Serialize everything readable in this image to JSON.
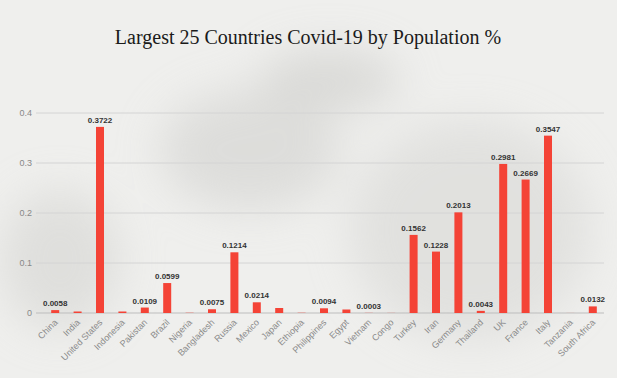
{
  "chart_data": {
    "type": "bar",
    "title": "Largest 25 Countries Covid-19 by Population %",
    "categories": [
      "China",
      "India",
      "United States",
      "Indonesia",
      "Pakistan",
      "Brazil",
      "Nigeria",
      "Bangladesh",
      "Russia",
      "Mexico",
      "Japan",
      "Ethiopia",
      "Philippines",
      "Egypt",
      "Vietnam",
      "Congo",
      "Turkey",
      "Iran",
      "Germany",
      "Thailand",
      "UK",
      "France",
      "Italy",
      "Tanzania",
      "South Africa"
    ],
    "values": [
      0.0058,
      0.003,
      0.3722,
      0.003,
      0.0109,
      0.0599,
      0.0005,
      0.0075,
      0.1214,
      0.0214,
      0.01,
      0.0005,
      0.0094,
      0.007,
      0.0003,
      0.0002,
      0.1562,
      0.1228,
      0.2013,
      0.0043,
      0.2981,
      0.2669,
      0.3547,
      0.0001,
      0.0132
    ],
    "value_labels": [
      "0.0058",
      null,
      "0.3722",
      null,
      "0.0109",
      "0.0599",
      null,
      "0.0075",
      "0.1214",
      "0.0214",
      null,
      null,
      "0.0094",
      null,
      "0.0003",
      null,
      "0.1562",
      "0.1228",
      "0.2013",
      "0.0043",
      "0.2981",
      "0.2669",
      "0.3547",
      null,
      "0.0132"
    ],
    "color": "#f44336",
    "ylim": [
      0,
      0.4
    ],
    "yticks": [
      0,
      0.1,
      0.2,
      0.3,
      0.4
    ],
    "grid": true,
    "data_labels": true
  }
}
